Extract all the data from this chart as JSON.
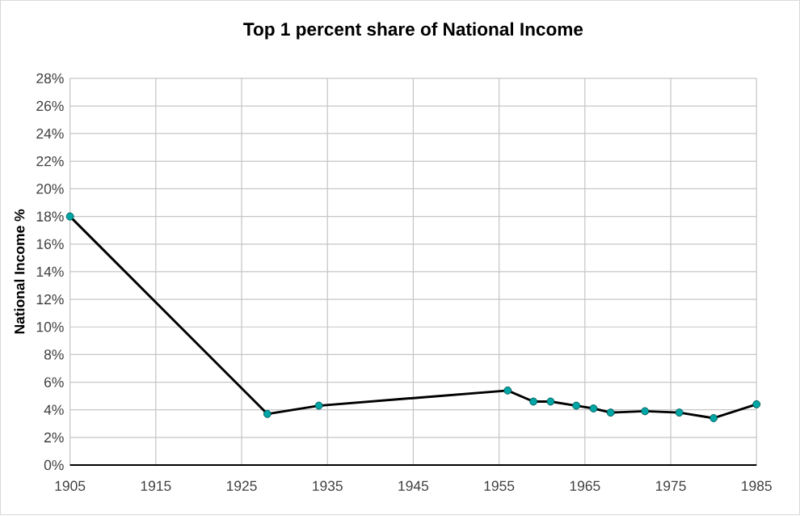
{
  "chart_data": {
    "type": "line",
    "title": "Top 1 percent share of National Income",
    "ylabel": "National Income %",
    "x": [
      1905,
      1928,
      1934,
      1956,
      1959,
      1961,
      1964,
      1966,
      1968,
      1972,
      1976,
      1980,
      1985
    ],
    "series": [
      {
        "color": "#000000",
        "values": [
          18,
          3.7,
          4.3,
          5.4,
          4.6,
          4.6,
          4.3,
          4.1,
          3.8,
          3.9,
          3.8,
          3.4,
          4.4
        ]
      }
    ],
    "xlim": [
      1905,
      1985
    ],
    "xticks": [
      1905,
      1915,
      1925,
      1935,
      1945,
      1955,
      1965,
      1975,
      1985
    ],
    "ylim": [
      0,
      28
    ],
    "yticks": [
      {
        "value": 0,
        "label": "0%"
      },
      {
        "value": 2,
        "label": "2%"
      },
      {
        "value": 4,
        "label": "4%"
      },
      {
        "value": 6,
        "label": "6%"
      },
      {
        "value": 8,
        "label": "8%"
      },
      {
        "value": 10,
        "label": "10%"
      },
      {
        "value": 12,
        "label": "12%"
      },
      {
        "value": 14,
        "label": "14%"
      },
      {
        "value": 16,
        "label": "16%"
      },
      {
        "value": 18,
        "label": "18%"
      },
      {
        "value": 20,
        "label": "20%"
      },
      {
        "value": 22,
        "label": "22%"
      },
      {
        "value": 24,
        "label": "24%"
      },
      {
        "value": 26,
        "label": "26%"
      },
      {
        "value": 28,
        "label": "28%"
      }
    ],
    "grid": true,
    "marker": "circle",
    "line_style": "solid"
  }
}
